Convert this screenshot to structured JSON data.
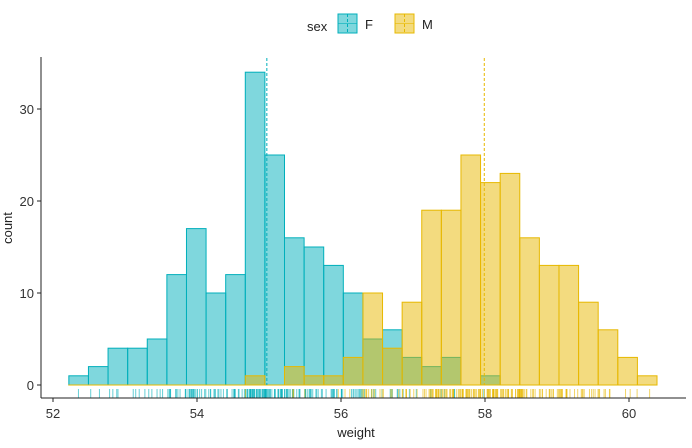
{
  "chart_data": {
    "type": "histogram",
    "title": "",
    "xlabel": "weight",
    "ylabel": "count",
    "xlim": [
      51.9,
      60.8
    ],
    "ylim": [
      -1.5,
      36
    ],
    "x_ticks": [
      52,
      54,
      56,
      58,
      60
    ],
    "y_ticks": [
      0,
      10,
      20,
      30
    ],
    "bin_start": 52.22,
    "bin_width": 0.2723,
    "grid": false,
    "legend": {
      "title": "sex",
      "position": "top"
    },
    "series": [
      {
        "name": "F",
        "color": "#00AFBB",
        "mean": 54.97,
        "counts": [
          1,
          2,
          4,
          4,
          5,
          12,
          17,
          10,
          12,
          34,
          25,
          16,
          15,
          13,
          10,
          5,
          6,
          3,
          2,
          3,
          0,
          1,
          0,
          0,
          0,
          0,
          0,
          0,
          0,
          0
        ]
      },
      {
        "name": "M",
        "color": "#E7B800",
        "mean": 57.99,
        "counts": [
          0,
          0,
          0,
          0,
          0,
          0,
          0,
          0,
          0,
          1,
          0,
          2,
          1,
          1,
          3,
          10,
          4,
          9,
          19,
          19,
          25,
          22,
          23,
          16,
          13,
          13,
          9,
          6,
          3,
          1
        ]
      }
    ]
  }
}
